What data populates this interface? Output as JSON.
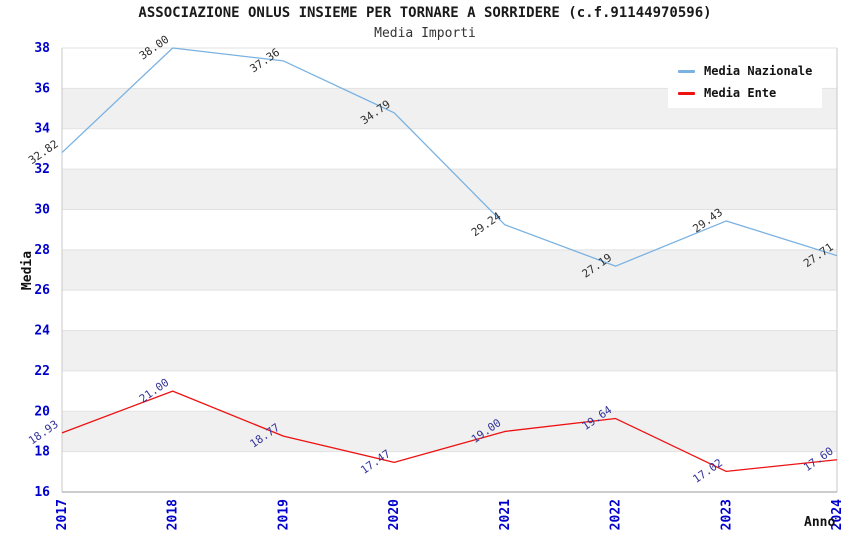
{
  "chart_data": {
    "type": "line",
    "title": "ASSOCIAZIONE ONLUS INSIEME PER TORNARE A SORRIDERE (c.f.91144970596)",
    "subtitle": "Media Importi",
    "xlabel": "Anno",
    "ylabel": "Media",
    "categories": [
      "2017",
      "2018",
      "2019",
      "2020",
      "2021",
      "2022",
      "2023",
      "2024"
    ],
    "series": [
      {
        "name": "Media Nazionale",
        "color": "#7ab2e2",
        "label_color": "#2e2e2e",
        "values": [
          32.82,
          38.0,
          37.36,
          34.79,
          29.24,
          27.19,
          29.43,
          27.71
        ]
      },
      {
        "name": "Media Ente",
        "color": "#ee1111",
        "label_color": "#333399",
        "values": [
          18.93,
          21.0,
          18.77,
          17.47,
          19.0,
          19.64,
          17.02,
          17.6
        ]
      }
    ],
    "ylim": [
      16,
      38
    ],
    "ytick_step": 2,
    "yticks": [
      "16",
      "18",
      "20",
      "22",
      "24",
      "26",
      "28",
      "30",
      "32",
      "34",
      "36",
      "38"
    ],
    "grid": "horizontal-bands",
    "band_color": "#f0f0f0",
    "gridline_color": "#e2e2e2",
    "axis_line_color": "#c9c9c9",
    "bottom_axis_color": "#999999",
    "tick_label_color": "#0000cc",
    "legend_position": "top-right",
    "value_label_rotation_deg": -35
  }
}
